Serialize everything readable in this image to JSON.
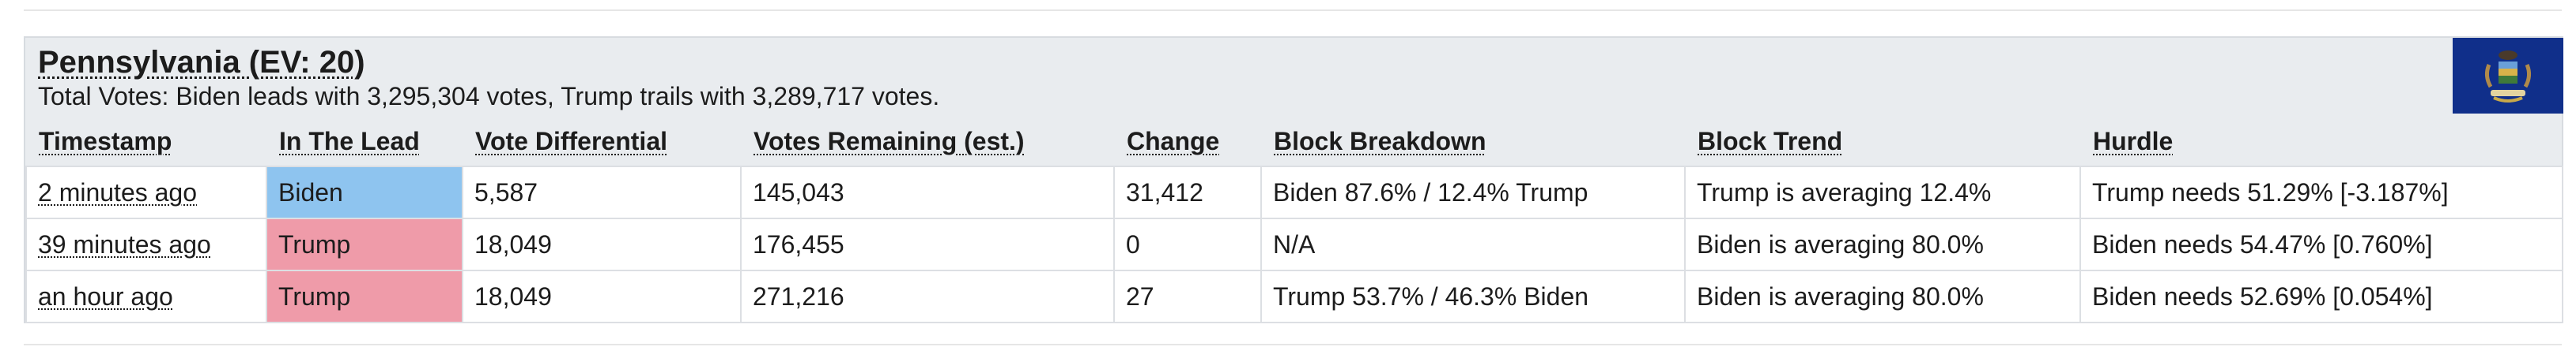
{
  "state": {
    "title": "Pennsylvania (EV: 20)",
    "summary": "Total Votes: Biden leads with 3,295,304 votes, Trump trails with 3,289,717 votes.",
    "flag_icon": "pennsylvania-flag-icon"
  },
  "colors": {
    "biden": "#8ec4ef",
    "trump": "#ef9ba9",
    "card_bg": "#e9ecef",
    "flag_blue": "#102f8a"
  },
  "table": {
    "headers": [
      "Timestamp",
      "In The Lead",
      "Vote Differential",
      "Votes Remaining (est.)",
      "Change",
      "Block Breakdown",
      "Block Trend",
      "Hurdle"
    ],
    "rows": [
      {
        "timestamp": "2 minutes ago",
        "lead": "Biden",
        "differential": "5,587",
        "remaining": "145,043",
        "change": "31,412",
        "breakdown": "Biden 87.6% / 12.4% Trump",
        "trend": "Trump is averaging 12.4%",
        "hurdle": "Trump needs 51.29% [-3.187%]"
      },
      {
        "timestamp": "39 minutes ago",
        "lead": "Trump",
        "differential": "18,049",
        "remaining": "176,455",
        "change": "0",
        "breakdown": "N/A",
        "trend": "Biden is averaging 80.0%",
        "hurdle": "Biden needs 54.47% [0.760%]"
      },
      {
        "timestamp": "an hour ago",
        "lead": "Trump",
        "differential": "18,049",
        "remaining": "271,216",
        "change": "27",
        "breakdown": "Trump 53.7% / 46.3% Biden",
        "trend": "Biden is averaging 80.0%",
        "hurdle": "Biden needs 52.69% [0.054%]"
      }
    ]
  }
}
